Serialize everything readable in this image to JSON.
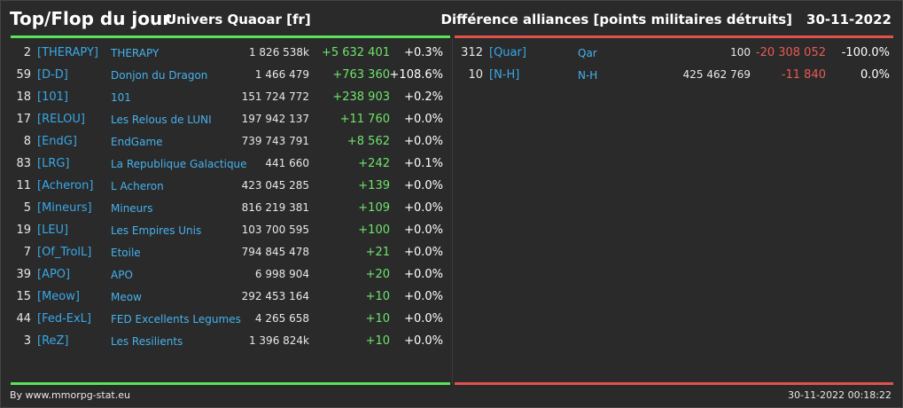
{
  "header": {
    "title": "Top/Flop du jour",
    "universe": "Univers Quaoar [fr]",
    "metric": "Différence alliances [points militaires détruits]",
    "date": "30-11-2022"
  },
  "colors": {
    "top_bar": "#59e35a",
    "flop_bar": "#e0534c",
    "tag": "#38a8e8",
    "positive": "#6ee46b",
    "negative": "#ec5a52"
  },
  "top": [
    {
      "rank": "2",
      "tag": "[THERAPY]",
      "name": "THERAPY",
      "points": "1 826 538k",
      "diff": "+5 632 401",
      "pct": "+0.3%"
    },
    {
      "rank": "59",
      "tag": "[D-D]",
      "name": "Donjon du Dragon",
      "points": "1 466 479",
      "diff": "+763 360",
      "pct": "+108.6%"
    },
    {
      "rank": "18",
      "tag": "[101]",
      "name": "101",
      "points": "151 724 772",
      "diff": "+238 903",
      "pct": "+0.2%"
    },
    {
      "rank": "17",
      "tag": "[RELOU]",
      "name": "Les Relous de LUNI",
      "points": "197 942 137",
      "diff": "+11 760",
      "pct": "+0.0%"
    },
    {
      "rank": "8",
      "tag": "[EndG]",
      "name": "EndGame",
      "points": "739 743 791",
      "diff": "+8 562",
      "pct": "+0.0%"
    },
    {
      "rank": "83",
      "tag": "[LRG]",
      "name": "La Republique Galactique",
      "points": "441 660",
      "diff": "+242",
      "pct": "+0.1%"
    },
    {
      "rank": "11",
      "tag": "[Acheron]",
      "name": "L Acheron",
      "points": "423 045 285",
      "diff": "+139",
      "pct": "+0.0%"
    },
    {
      "rank": "5",
      "tag": "[Mineurs]",
      "name": "Mineurs",
      "points": "816 219 381",
      "diff": "+109",
      "pct": "+0.0%"
    },
    {
      "rank": "19",
      "tag": "[LEU]",
      "name": "Les Empires Unis",
      "points": "103 700 595",
      "diff": "+100",
      "pct": "+0.0%"
    },
    {
      "rank": "7",
      "tag": "[Of_TrolL]",
      "name": "Etoile",
      "points": "794 845 478",
      "diff": "+21",
      "pct": "+0.0%"
    },
    {
      "rank": "39",
      "tag": "[APO]",
      "name": "APO",
      "points": "6 998 904",
      "diff": "+20",
      "pct": "+0.0%"
    },
    {
      "rank": "15",
      "tag": "[Meow]",
      "name": "Meow",
      "points": "292 453 164",
      "diff": "+10",
      "pct": "+0.0%"
    },
    {
      "rank": "44",
      "tag": "[Fed-ExL]",
      "name": "FED Excellents Legumes",
      "points": "4 265 658",
      "diff": "+10",
      "pct": "+0.0%"
    },
    {
      "rank": "3",
      "tag": "[ReZ]",
      "name": "Les Resilients",
      "points": "1 396 824k",
      "diff": "+10",
      "pct": "+0.0%"
    }
  ],
  "flop": [
    {
      "rank": "312",
      "tag": "[Quar]",
      "name": "Qar",
      "points": "100",
      "diff": "-20 308 052",
      "pct": "-100.0%"
    },
    {
      "rank": "10",
      "tag": "[N-H]",
      "name": "N-H",
      "points": "425 462 769",
      "diff": "-11 840",
      "pct": "0.0%"
    }
  ],
  "footer": {
    "credit": "By www.mmorpg-stat.eu",
    "timestamp": "30-11-2022 00:18:22"
  }
}
